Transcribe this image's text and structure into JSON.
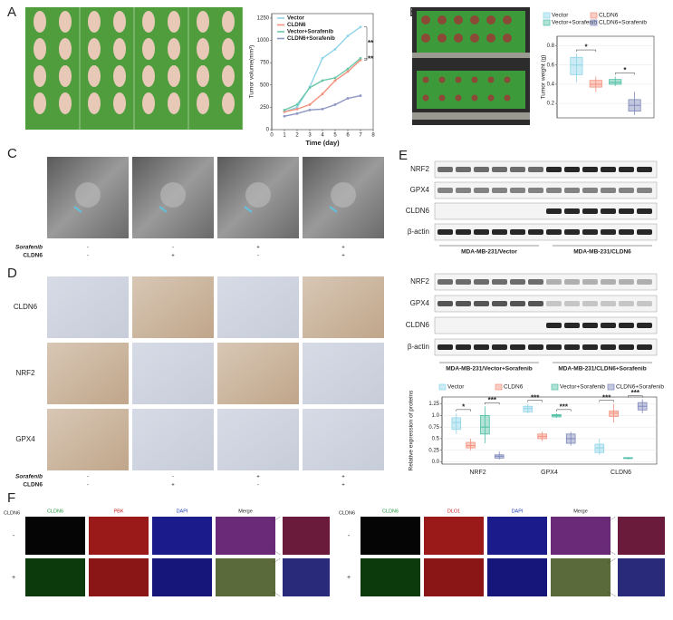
{
  "panel_labels": [
    "A",
    "B",
    "C",
    "D",
    "E",
    "F"
  ],
  "chart_data": [
    {
      "type": "line",
      "xlabel": "Time (day)",
      "ylabel": "Tumor volume(mm³)",
      "x": [
        1,
        2,
        3,
        4,
        5,
        6,
        7
      ],
      "xlim": [
        0,
        8
      ],
      "xticks": [
        0,
        1,
        2,
        3,
        4,
        5,
        6,
        7,
        8
      ],
      "ylim": [
        0,
        1300
      ],
      "yticks": [
        0,
        250,
        500,
        750,
        1000,
        1250
      ],
      "legend": "upper left",
      "series": [
        {
          "name": "Vector",
          "color": "#8fd4e8",
          "values": [
            200,
            250,
            480,
            800,
            900,
            1050,
            1150
          ]
        },
        {
          "name": "CLDN6",
          "color": "#f4907c",
          "values": [
            200,
            230,
            280,
            400,
            550,
            650,
            780
          ]
        },
        {
          "name": "Vector+Sorafenib",
          "color": "#6cc7ab",
          "values": [
            220,
            280,
            470,
            550,
            580,
            680,
            800
          ]
        },
        {
          "name": "CLDN6+Sorafenib",
          "color": "#8e97c4",
          "values": [
            150,
            180,
            220,
            230,
            280,
            350,
            380
          ]
        }
      ],
      "annotations": [
        "**",
        "**"
      ]
    },
    {
      "type": "box",
      "ylabel": "Tumor weight (g)",
      "categories": [
        null
      ],
      "ylim": [
        0.05,
        0.9
      ],
      "yticks": [
        0.2,
        0.4,
        0.6,
        0.8
      ],
      "grid": true,
      "legend": "top",
      "series": [
        {
          "name": "Vector",
          "color": "#8fd4e8",
          "min": [
            0.42
          ],
          "q1": [
            0.5
          ],
          "median": [
            0.6
          ],
          "q3": [
            0.68
          ],
          "max": [
            0.72
          ]
        },
        {
          "name": "CLDN6",
          "color": "#f4907c",
          "min": [
            0.32
          ],
          "q1": [
            0.37
          ],
          "median": [
            0.4
          ],
          "q3": [
            0.44
          ],
          "max": [
            0.48
          ]
        },
        {
          "name": "Vector+Sorafenib",
          "color": "#4fbfa5",
          "min": [
            0.38
          ],
          "q1": [
            0.4
          ],
          "median": [
            0.42
          ],
          "q3": [
            0.45
          ],
          "max": [
            0.48
          ]
        },
        {
          "name": "CLDN6+Sorafenib",
          "color": "#7f88bb",
          "min": [
            0.08
          ],
          "q1": [
            0.12
          ],
          "median": [
            0.18
          ],
          "q3": [
            0.24
          ],
          "max": [
            0.32
          ]
        }
      ],
      "annotations": [
        "*",
        "*"
      ]
    },
    {
      "type": "box",
      "ylabel": "Relative expression of proteins",
      "categories": [
        "NRF2",
        "GPX4",
        "CLDN6"
      ],
      "ylim": [
        -0.05,
        1.4
      ],
      "yticks": [
        {
          "value": 0,
          "label": "0.0"
        },
        0.25,
        0.5,
        0.75,
        {
          "value": 1,
          "label": "1.0"
        },
        1.25
      ],
      "grid": true,
      "legend": "top",
      "series": [
        {
          "name": "Vector",
          "color": "#8fd4e8",
          "min": [
            0.6,
            1.05,
            0.15
          ],
          "q1": [
            0.7,
            1.08,
            0.2
          ],
          "median": [
            0.85,
            1.15,
            0.3
          ],
          "q3": [
            0.95,
            1.2,
            0.38
          ],
          "max": [
            1.05,
            1.25,
            0.5
          ]
        },
        {
          "name": "CLDN6",
          "color": "#f4907c",
          "min": [
            0.25,
            0.45,
            0.85
          ],
          "q1": [
            0.3,
            0.5,
            0.98
          ],
          "median": [
            0.35,
            0.55,
            1.05
          ],
          "q3": [
            0.42,
            0.6,
            1.1
          ],
          "max": [
            0.5,
            0.65,
            1.25
          ]
        },
        {
          "name": "Vector+Sorafenib",
          "color": "#4fbfa5",
          "min": [
            0.4,
            0.95,
            0.05
          ],
          "q1": [
            0.6,
            0.97,
            0.07
          ],
          "median": [
            0.75,
            1.0,
            0.08
          ],
          "q3": [
            1.0,
            1.02,
            0.09
          ],
          "max": [
            1.2,
            1.05,
            0.1
          ]
        },
        {
          "name": "CLDN6+Sorafenib",
          "color": "#7f88bb",
          "min": [
            0.05,
            0.35,
            1.05
          ],
          "q1": [
            0.08,
            0.4,
            1.12
          ],
          "median": [
            0.12,
            0.5,
            1.2
          ],
          "q3": [
            0.15,
            0.6,
            1.28
          ],
          "max": [
            0.22,
            0.65,
            1.35
          ]
        }
      ],
      "annotations": [
        "*",
        "***",
        "***",
        "***",
        "***",
        "***"
      ]
    }
  ],
  "panel_c": {
    "rows": [
      {
        "label": "Sorafenib",
        "marks": [
          "-",
          "-",
          "+",
          "+"
        ]
      },
      {
        "label": "CLDN6",
        "marks": [
          "-",
          "+",
          "-",
          "+"
        ]
      }
    ]
  },
  "panel_d": {
    "row_labels": [
      "CLDN6",
      "NRF2",
      "GPX4"
    ],
    "rows": [
      {
        "label": "Sorafenib",
        "marks": [
          "-",
          "-",
          "+",
          "+"
        ]
      },
      {
        "label": "CLDN6",
        "marks": [
          "-",
          "+",
          "-",
          "+"
        ]
      }
    ]
  },
  "panel_e": {
    "blots": [
      {
        "rows": [
          "NRF2",
          "GPX4",
          "CLDN6",
          "β-actin"
        ],
        "groups": [
          "MDA-MB-231/Vector",
          "MDA-MB-231/CLDN6"
        ]
      },
      {
        "rows": [
          "NRF2",
          "GPX4",
          "CLDN6",
          "β-actin"
        ],
        "groups": [
          "MDA-MB-231/Vector+Sorafenib",
          "MDA-MB-231/CLDN6+Sorafenib"
        ]
      }
    ]
  },
  "panel_f": {
    "groups": [
      {
        "label": "CLDN6",
        "columns": [
          "CLDN6",
          "PBK",
          "DAPI",
          "Merge"
        ],
        "rows": [
          "-",
          "+"
        ]
      },
      {
        "label": "CLDN6",
        "columns": [
          "CLDN6",
          "DLO1",
          "DAPI",
          "Merge"
        ],
        "rows": [
          "-",
          "+"
        ]
      }
    ]
  }
}
